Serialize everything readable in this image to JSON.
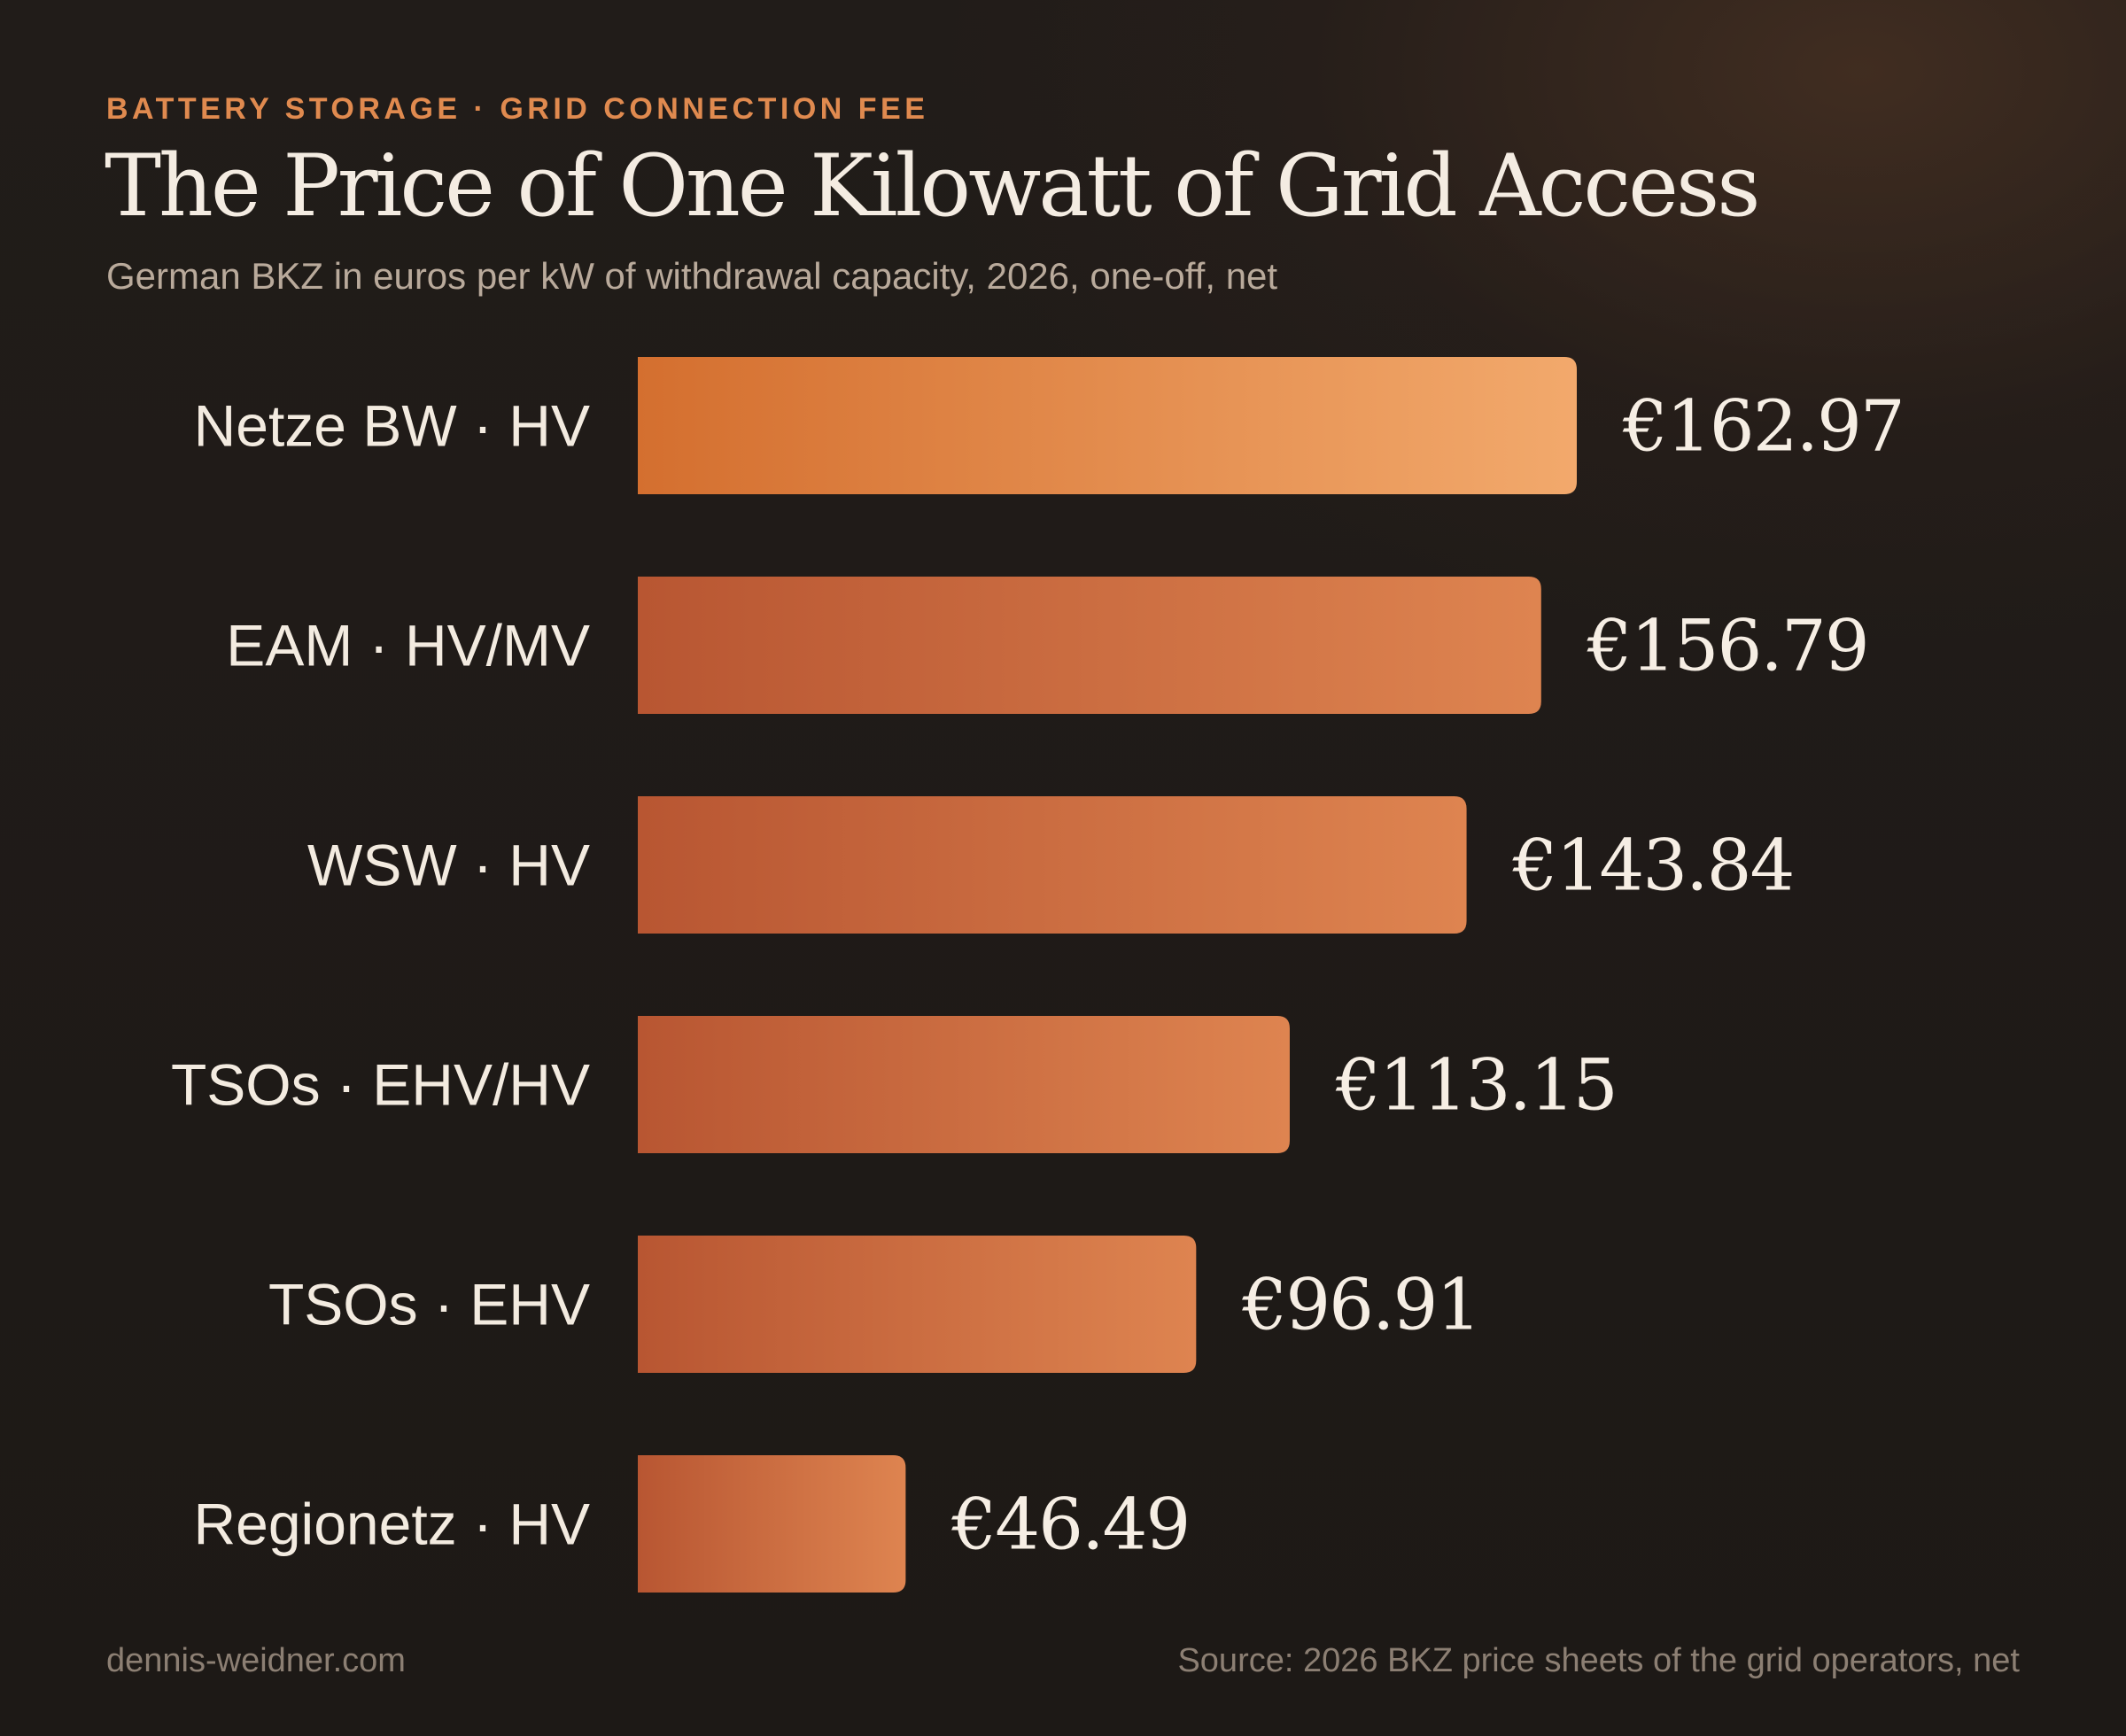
{
  "header": {
    "kicker": "BATTERY STORAGE · GRID CONNECTION FEE",
    "title": "The Price of One Kilowatt of Grid Access",
    "subtitle": "German BKZ in euros per kW of withdrawal capacity, 2026, one-off, net"
  },
  "footer": {
    "credit": "dennis-weidner.com",
    "source": "Source: 2026 BKZ price sheets of the grid operators, net"
  },
  "colors": {
    "background": "#1e1a17",
    "bar_start": "#b85632",
    "bar_end": "#de8450",
    "highlight_start": "#d46f2f",
    "highlight_end": "#f2a96c",
    "kicker": "#e08a4f"
  },
  "chart_data": {
    "type": "bar",
    "orientation": "horizontal",
    "title": "The Price of One Kilowatt of Grid Access",
    "subtitle": "German BKZ in euros per kW of withdrawal capacity, 2026, one-off, net",
    "categories": [
      "Netze BW · HV",
      "EAM · HV/MV",
      "WSW · HV",
      "TSOs · EHV/HV",
      "TSOs · EHV",
      "Regionetz · HV"
    ],
    "values": [
      162.97,
      156.79,
      143.84,
      113.15,
      96.91,
      46.49
    ],
    "value_labels": [
      "€162.97",
      "€156.79",
      "€143.84",
      "€113.15",
      "€96.91",
      "€46.49"
    ],
    "highlight_index": 0,
    "xlim": [
      0,
      162.97
    ],
    "grid": false,
    "legend": "none",
    "xlabel": "",
    "ylabel": ""
  }
}
